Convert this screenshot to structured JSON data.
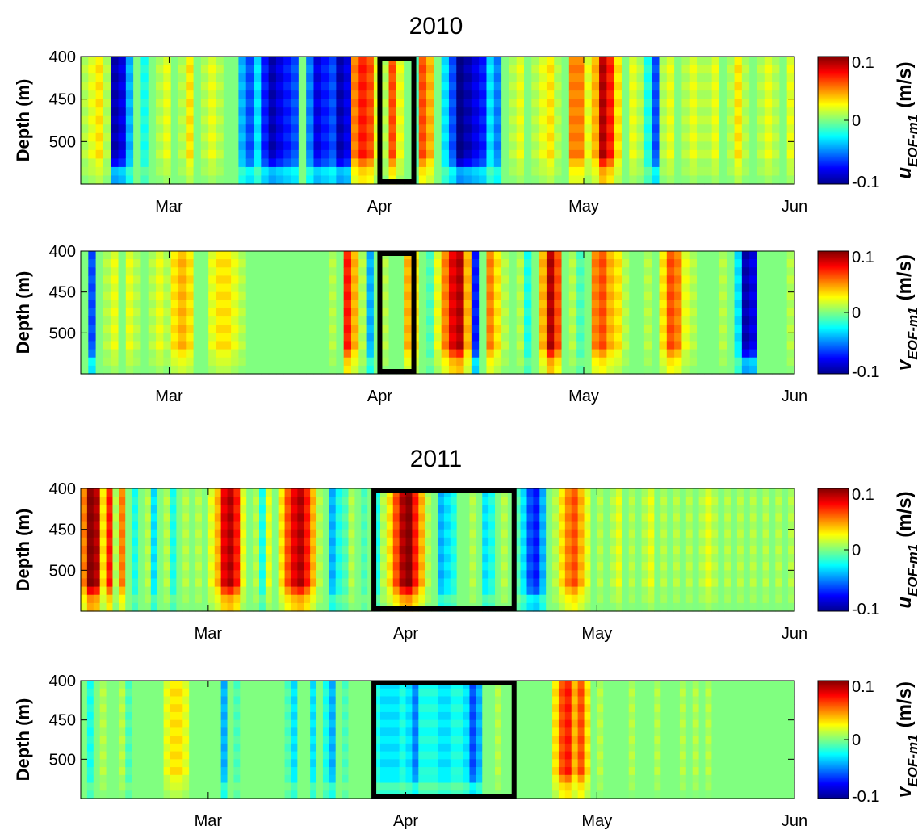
{
  "figure": {
    "titles": [
      "2010",
      "2011"
    ]
  },
  "chart_data": [
    {
      "type": "heatmap",
      "year_title": "2010",
      "variable": "u",
      "ylabel": "Depth (m)",
      "yticks": [
        400,
        450,
        500
      ],
      "ylim": [
        400,
        550
      ],
      "xticks": [
        {
          "label": "Mar",
          "day": 0
        },
        {
          "label": "Apr",
          "day": 31
        },
        {
          "label": "May",
          "day": 61
        },
        {
          "label": "Jun",
          "day": 92
        }
      ],
      "xlim": [
        -13,
        92
      ],
      "colorbar": {
        "label_main": "u",
        "label_sub": "EOF-m1",
        "label_unit": "(m/s)",
        "ticks": [
          "0.1",
          "0",
          "-0.1"
        ],
        "range": [
          -0.1,
          0.1
        ]
      },
      "highlight_box": {
        "start_day": 31,
        "end_day": 36
      },
      "depth_rows": [
        400,
        410,
        420,
        430,
        440,
        450,
        460,
        470,
        480,
        490,
        500,
        510,
        520,
        530,
        540
      ],
      "values": [
        0.01,
        0.02,
        0.03,
        0.01,
        -0.09,
        -0.08,
        -0.04,
        0.0,
        -0.02,
        0.0,
        0.01,
        0.02,
        0.0,
        0.01,
        0.03,
        0.0,
        0.01,
        0.02,
        0.01,
        0.0,
        0.0,
        -0.04,
        -0.06,
        -0.03,
        -0.07,
        -0.09,
        -0.08,
        -0.07,
        -0.06,
        0.0,
        -0.05,
        -0.08,
        -0.07,
        -0.06,
        -0.09,
        -0.08,
        0.05,
        0.07,
        0.06,
        0.02,
        0.01,
        0.06,
        0.02,
        0.0,
        -0.01,
        0.06,
        0.04,
        0.0,
        -0.03,
        -0.06,
        -0.1,
        -0.09,
        -0.08,
        -0.07,
        -0.03,
        -0.05,
        0.0,
        0.01,
        0.02,
        0.0,
        0.01,
        0.02,
        0.03,
        0.01,
        0.0,
        0.05,
        0.05,
        0.02,
        0.04,
        0.09,
        0.07,
        0.03,
        0.0,
        0.02,
        0.01,
        -0.02,
        -0.06,
        0.01,
        0.02,
        0.0,
        0.01,
        0.02,
        0.01,
        0.01,
        0.02,
        0.0,
        0.01,
        0.03,
        0.01,
        0.0,
        0.01,
        0.02,
        0.01,
        0.0,
        0.02
      ]
    },
    {
      "type": "heatmap",
      "variable": "v",
      "ylabel": "Depth (m)",
      "yticks": [
        400,
        450,
        500
      ],
      "ylim": [
        400,
        550
      ],
      "xticks": [
        {
          "label": "Mar",
          "day": 0
        },
        {
          "label": "Apr",
          "day": 31
        },
        {
          "label": "May",
          "day": 61
        },
        {
          "label": "Jun",
          "day": 92
        }
      ],
      "xlim": [
        -13,
        92
      ],
      "colorbar": {
        "label_main": "v",
        "label_sub": "EOF-m1",
        "label_unit": "(m/s)",
        "ticks": [
          "0.1",
          "0",
          "-0.1"
        ],
        "range": [
          -0.1,
          0.1
        ]
      },
      "highlight_box": {
        "start_day": 31,
        "end_day": 36
      },
      "depth_rows": [
        400,
        410,
        420,
        430,
        440,
        450,
        460,
        470,
        480,
        490,
        500,
        510,
        520,
        530,
        540
      ],
      "values": [
        0.0,
        -0.06,
        0.0,
        0.01,
        0.02,
        0.0,
        0.02,
        0.01,
        0.0,
        0.01,
        0.02,
        0.01,
        0.03,
        0.04,
        0.03,
        0.0,
        0.0,
        0.02,
        0.03,
        0.03,
        0.02,
        0.01,
        0.0,
        0.0,
        0.0,
        0.0,
        0.0,
        0.0,
        0.0,
        0.0,
        0.0,
        0.0,
        0.0,
        0.01,
        0.0,
        0.07,
        0.04,
        0.01,
        -0.04,
        0.0,
        0.01,
        0.0,
        0.0,
        0.04,
        0.03,
        0.0,
        -0.01,
        0.02,
        0.05,
        0.08,
        0.09,
        0.04,
        -0.07,
        0.0,
        0.05,
        0.03,
        0.01,
        0.0,
        0.01,
        -0.02,
        0.0,
        0.04,
        0.09,
        0.06,
        0.0,
        0.01,
        -0.01,
        0.0,
        0.05,
        0.06,
        0.04,
        0.03,
        0.01,
        0.0,
        0.0,
        0.01,
        0.0,
        0.03,
        0.06,
        0.05,
        0.02,
        0.01,
        0.0,
        0.0,
        0.0,
        0.01,
        0.0,
        -0.03,
        -0.09,
        -0.08,
        0.0,
        0.0,
        0.0,
        0.0,
        0.01
      ]
    },
    {
      "type": "heatmap",
      "year_title": "2011",
      "variable": "u",
      "ylabel": "Depth (m)",
      "yticks": [
        400,
        450,
        500
      ],
      "ylim": [
        400,
        550
      ],
      "xticks": [
        {
          "label": "Mar",
          "day": 0
        },
        {
          "label": "Apr",
          "day": 31
        },
        {
          "label": "May",
          "day": 61
        },
        {
          "label": "Jun",
          "day": 92
        }
      ],
      "xlim": [
        -20,
        92
      ],
      "colorbar": {
        "label_main": "u",
        "label_sub": "EOF-m1",
        "label_unit": "(m/s)",
        "ticks": [
          "0.1",
          "0",
          "-0.1"
        ],
        "range": [
          -0.1,
          0.1
        ]
      },
      "highlight_box": {
        "start_day": 26,
        "end_day": 48
      },
      "depth_rows": [
        400,
        410,
        420,
        430,
        440,
        450,
        460,
        470,
        480,
        490,
        500,
        510,
        520,
        530,
        540
      ],
      "values": [
        0.05,
        0.1,
        0.09,
        0.03,
        0.07,
        0.01,
        0.05,
        0.0,
        -0.02,
        0.0,
        0.01,
        -0.03,
        0.0,
        0.01,
        -0.02,
        0.0,
        0.01,
        0.0,
        0.01,
        0.0,
        0.02,
        0.04,
        0.08,
        0.09,
        0.07,
        0.02,
        0.0,
        0.01,
        -0.02,
        0.02,
        0.0,
        0.03,
        0.06,
        0.08,
        0.09,
        0.07,
        0.04,
        0.01,
        0.0,
        -0.04,
        -0.02,
        -0.01,
        0.01,
        0.0,
        -0.01,
        0.0,
        -0.02,
        0.01,
        0.03,
        0.06,
        0.09,
        0.1,
        0.07,
        0.04,
        0.01,
        0.0,
        -0.04,
        -0.03,
        -0.02,
        0.0,
        0.0,
        0.01,
        0.0,
        -0.03,
        -0.02,
        0.0,
        0.01,
        0.0,
        -0.01,
        -0.03,
        -0.06,
        -0.07,
        -0.04,
        0.0,
        0.01,
        0.03,
        0.05,
        0.06,
        0.04,
        0.02,
        0.0,
        0.01,
        0.0,
        0.01,
        0.02,
        0.0,
        0.01,
        0.0,
        0.01,
        0.02,
        0.0,
        0.01,
        0.0,
        0.01,
        0.0,
        0.01,
        0.0,
        0.01,
        0.02,
        0.01,
        0.0,
        0.01,
        0.0,
        0.01,
        0.0,
        0.01,
        0.0,
        0.01,
        0.0,
        0.01,
        0.0,
        0.01
      ]
    },
    {
      "type": "heatmap",
      "variable": "v",
      "ylabel": "Depth (m)",
      "yticks": [
        400,
        450,
        500
      ],
      "ylim": [
        400,
        550
      ],
      "xticks": [
        {
          "label": "Mar",
          "day": 0
        },
        {
          "label": "Apr",
          "day": 31
        },
        {
          "label": "May",
          "day": 61
        },
        {
          "label": "Jun",
          "day": 92
        }
      ],
      "xlim": [
        -20,
        92
      ],
      "colorbar": {
        "label_main": "v",
        "label_sub": "EOF-m1",
        "label_unit": "(m/s)",
        "ticks": [
          "0.1",
          "0",
          "-0.1"
        ],
        "range": [
          -0.1,
          0.1
        ]
      },
      "highlight_box": {
        "start_day": 26,
        "end_day": 48
      },
      "depth_rows": [
        400,
        410,
        420,
        430,
        440,
        450,
        460,
        470,
        480,
        490,
        500,
        510,
        520,
        530,
        540
      ],
      "values": [
        0.0,
        -0.02,
        0.0,
        0.01,
        0.0,
        0.0,
        0.01,
        -0.01,
        0.0,
        0.0,
        0.0,
        0.0,
        0.0,
        0.02,
        0.03,
        0.03,
        0.02,
        0.0,
        0.0,
        0.0,
        0.0,
        0.0,
        -0.04,
        0.0,
        -0.01,
        0.0,
        0.0,
        0.0,
        0.0,
        0.0,
        0.0,
        0.0,
        -0.01,
        -0.03,
        0.0,
        0.0,
        -0.03,
        0.0,
        -0.02,
        -0.04,
        0.0,
        -0.01,
        0.0,
        0.0,
        0.0,
        0.0,
        -0.02,
        -0.03,
        -0.03,
        -0.03,
        -0.02,
        -0.03,
        -0.05,
        -0.02,
        -0.02,
        -0.02,
        -0.03,
        -0.03,
        -0.02,
        -0.02,
        -0.03,
        -0.06,
        -0.04,
        0.0,
        0.0,
        0.01,
        0.0,
        0.0,
        0.0,
        0.0,
        0.0,
        0.0,
        0.0,
        0.0,
        0.03,
        0.06,
        0.07,
        0.04,
        0.06,
        0.03,
        0.0,
        0.01,
        0.0,
        0.0,
        0.0,
        0.0,
        0.01,
        0.0,
        0.0,
        0.0,
        0.01,
        0.0,
        0.0,
        0.0,
        0.01,
        0.0,
        0.01,
        0.0,
        0.01,
        0.0,
        0.0,
        0.0,
        0.0,
        0.0,
        0.0,
        0.0,
        0.0,
        0.0,
        0.0,
        0.0,
        0.0,
        0.0
      ]
    }
  ]
}
